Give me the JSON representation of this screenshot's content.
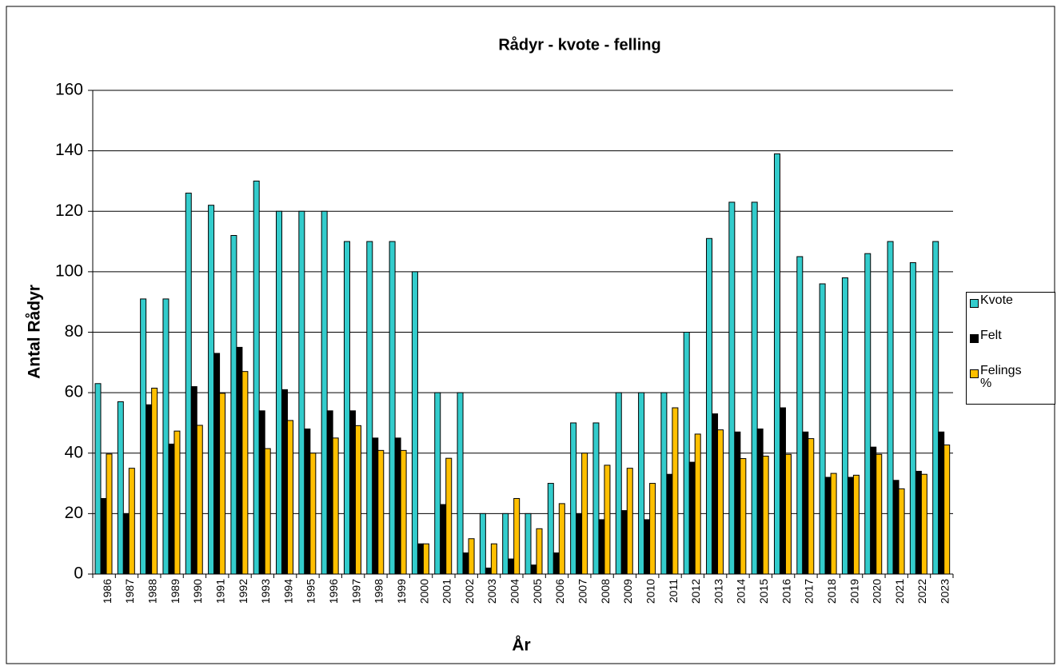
{
  "chart_data": {
    "type": "bar",
    "title": "Rådyr - kvote - felling",
    "x_label": "År",
    "y_label": "Antal Rådyr",
    "categories": [
      "1986",
      "1987",
      "1988",
      "1989",
      "1990",
      "1991",
      "1992",
      "1993",
      "1994",
      "1995",
      "1996",
      "1997",
      "1998",
      "1999",
      "2000",
      "2001",
      "2002",
      "2003",
      "2004",
      "2005",
      "2006",
      "2007",
      "2008",
      "2009",
      "2010",
      "2011",
      "2012",
      "2013",
      "2014",
      "2015",
      "2016",
      "2017",
      "2018",
      "2019",
      "2020",
      "2021",
      "2022",
      "2023"
    ],
    "series": [
      {
        "name": "Kvote",
        "color": "#33cccc",
        "values": [
          63,
          57,
          91,
          91,
          126,
          122,
          112,
          130,
          120,
          120,
          120,
          110,
          110,
          110,
          100,
          60,
          60,
          20,
          20,
          20,
          30,
          50,
          50,
          60,
          60,
          60,
          80,
          111,
          123,
          123,
          139,
          105,
          96,
          98,
          106,
          110,
          103,
          110
        ]
      },
      {
        "name": "Felt",
        "color": "#000000",
        "values": [
          25,
          20,
          56,
          43,
          62,
          73,
          75,
          54,
          61,
          48,
          54,
          54,
          45,
          45,
          10,
          23,
          7,
          2,
          5,
          3,
          7,
          20,
          18,
          21,
          18,
          33,
          37,
          53,
          47,
          48,
          55,
          47,
          32,
          32,
          42,
          31,
          34,
          47
        ]
      },
      {
        "name": "Felings %",
        "color": "#ffc000",
        "values": [
          39.7,
          35,
          61.5,
          47.3,
          49.2,
          59.8,
          67,
          41.5,
          50.8,
          40,
          45,
          49.1,
          40.9,
          40.9,
          10,
          38.3,
          11.7,
          10,
          25,
          15,
          23.3,
          40,
          36,
          35,
          30,
          55,
          46.3,
          47.7,
          38.2,
          39,
          39.6,
          44.8,
          33.3,
          32.7,
          39.6,
          28.2,
          33,
          42.7
        ]
      }
    ],
    "ylim": [
      0,
      160
    ],
    "yticks": [
      0,
      20,
      40,
      60,
      80,
      100,
      120,
      140,
      160
    ],
    "grid": true,
    "legend": "right"
  }
}
